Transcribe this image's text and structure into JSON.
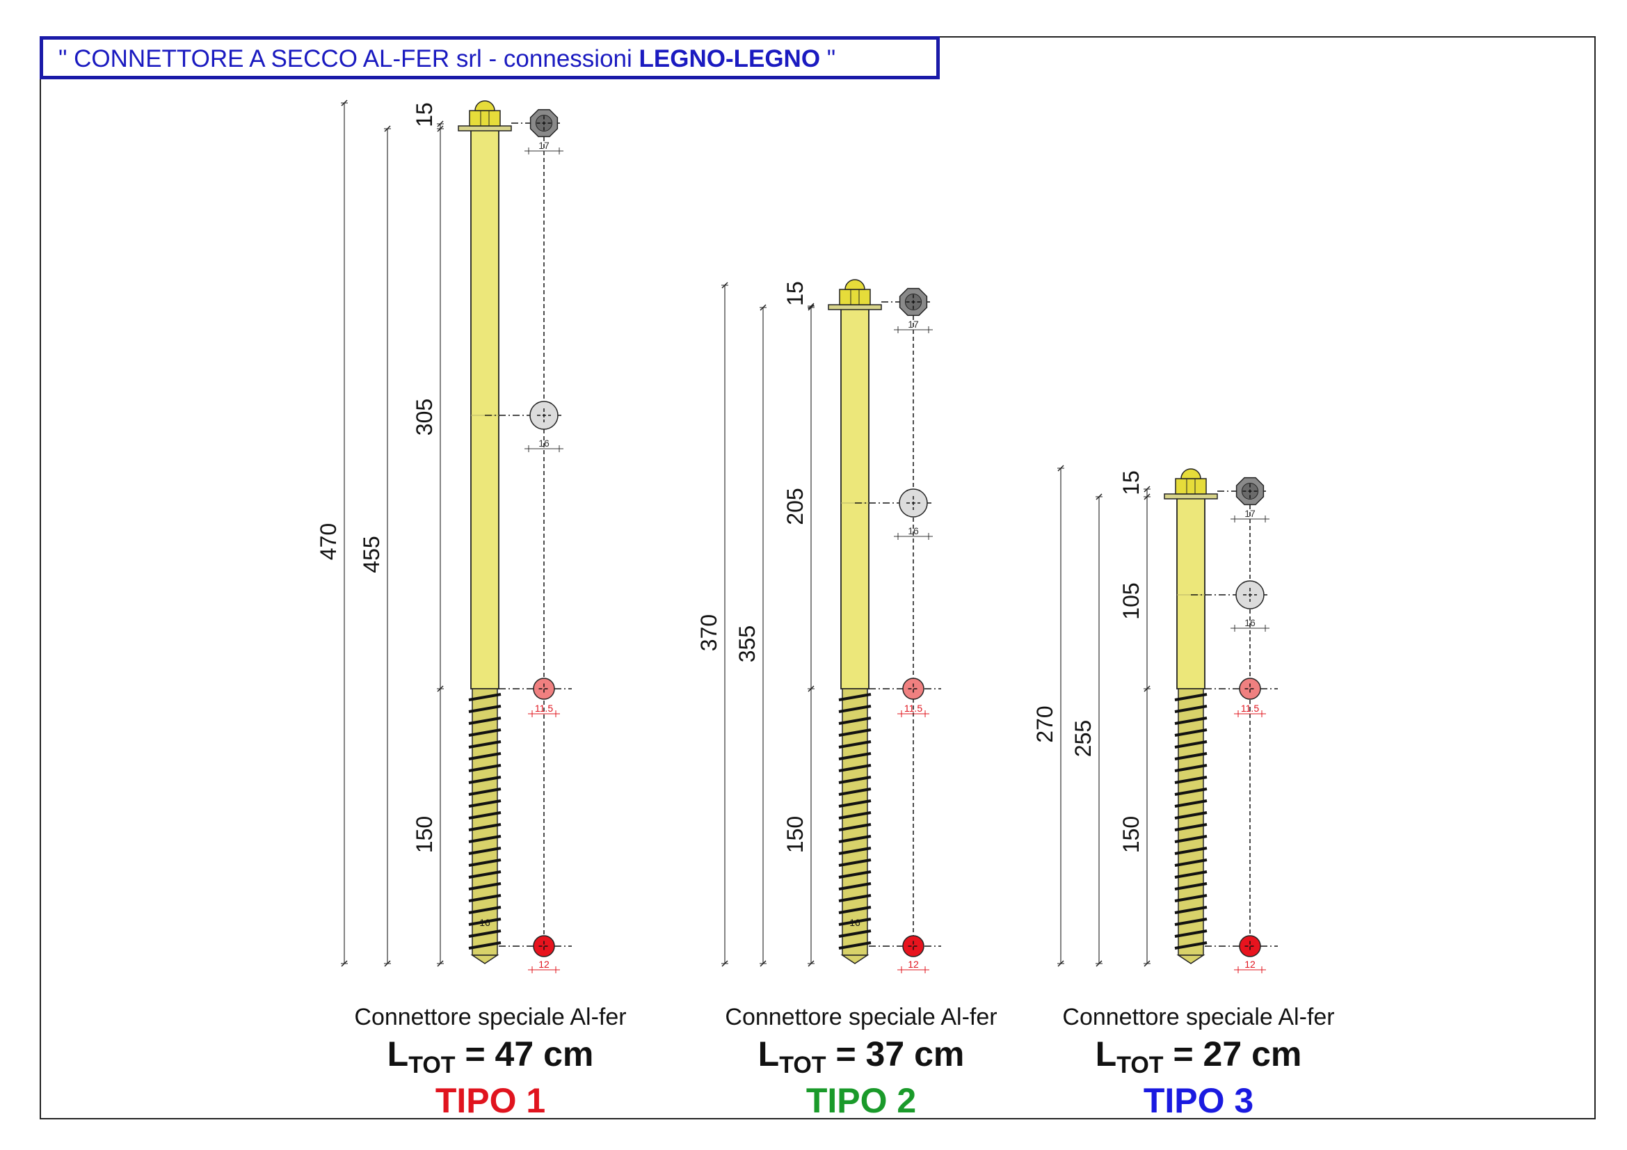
{
  "title": {
    "prefix": "\" CONNETTORE A SECCO AL-FER srl - connessioni ",
    "bold": "LEGNO-LEGNO",
    "suffix": " \""
  },
  "colors": {
    "title_blue": "#1a1ac0",
    "shank_yellow": "#ece77a",
    "tipo1": "#e0141e",
    "tipo2": "#1a9a2a",
    "tipo3": "#1a1ae0"
  },
  "connectors": [
    {
      "id": "tipo1",
      "dim_total": "470",
      "dim_shank": "455",
      "dim_head": "15",
      "dim_plain": "305",
      "dim_thread": "150",
      "d_head": "17",
      "d_mid": "16",
      "d_thread_start": "11.5",
      "d_tip": "12",
      "d_thread_label": "16",
      "caption": "Connettore speciale Al-fer",
      "l_prefix": "L",
      "l_sub": "TOT",
      "l_value": " = 47 cm",
      "tipo": "TIPO 1"
    },
    {
      "id": "tipo2",
      "dim_total": "370",
      "dim_shank": "355",
      "dim_head": "15",
      "dim_plain": "205",
      "dim_thread": "150",
      "d_head": "17",
      "d_mid": "16",
      "d_thread_start": "11.5",
      "d_tip": "12",
      "d_thread_label": "16",
      "caption": "Connettore speciale Al-fer",
      "l_prefix": "L",
      "l_sub": "TOT",
      "l_value": " = 37 cm",
      "tipo": "TIPO 2"
    },
    {
      "id": "tipo3",
      "dim_total": "270",
      "dim_shank": "255",
      "dim_head": "15",
      "dim_plain": "105",
      "dim_thread": "150",
      "d_head": "17",
      "d_mid": "16",
      "d_thread_start": "11.5",
      "d_tip": "12",
      "d_thread_label": "",
      "caption": "Connettore speciale Al-fer",
      "l_prefix": "L",
      "l_sub": "TOT",
      "l_value": " = 27 cm",
      "tipo": "TIPO 3"
    }
  ]
}
